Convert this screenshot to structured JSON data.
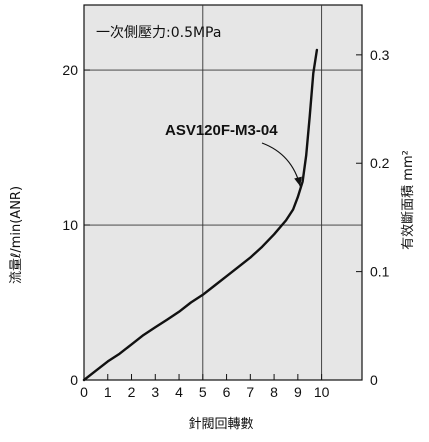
{
  "chart_data": {
    "type": "line",
    "note": "一次側壓力:0.5MPa",
    "xlabel": "針閥回轉數",
    "ylabel": "流量ℓ/min(ANR)",
    "y2label": "有效斷面積 mm²",
    "xlim": [
      0,
      11.7
    ],
    "ylim": [
      0,
      24.2
    ],
    "y2lim": [
      0,
      0.346
    ],
    "xticks": [
      "0",
      "1",
      "2",
      "3",
      "4",
      "5",
      "6",
      "7",
      "8",
      "9",
      "10"
    ],
    "yticks": [
      "0",
      "10",
      "20"
    ],
    "y2ticks": [
      "0",
      "0.1",
      "0.2",
      "0.3"
    ],
    "grid": true,
    "annotation": {
      "text": "ASV120F-M3-04",
      "target": [
        9.1,
        12.5
      ]
    },
    "series": [
      {
        "name": "ASV120F-M3-04",
        "x": [
          0,
          0.5,
          1,
          1.5,
          2,
          2.5,
          3,
          3.5,
          4,
          4.5,
          5,
          5.5,
          6,
          6.5,
          7,
          7.5,
          8,
          8.5,
          8.8,
          9.0,
          9.2,
          9.35,
          9.5,
          9.65,
          9.8
        ],
        "y": [
          0,
          0.6,
          1.2,
          1.7,
          2.3,
          2.9,
          3.4,
          3.9,
          4.4,
          5.0,
          5.5,
          6.1,
          6.7,
          7.3,
          7.9,
          8.6,
          9.4,
          10.3,
          11.0,
          11.8,
          12.8,
          14.5,
          17.0,
          19.8,
          21.3
        ]
      }
    ]
  }
}
